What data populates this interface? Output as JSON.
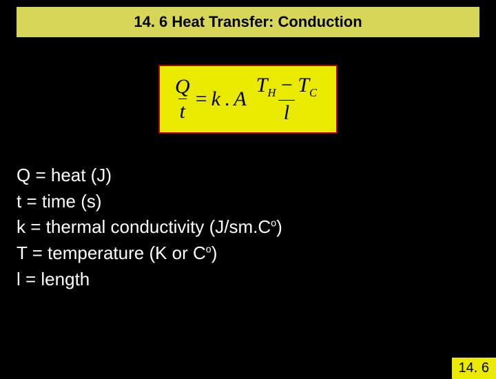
{
  "colors": {
    "background": "#000000",
    "title_bg": "#d6d658",
    "formula_bg": "#eaea00",
    "formula_border": "#b00000",
    "text_light": "#ffffff",
    "text_dark": "#000000"
  },
  "title": "14. 6 Heat Transfer: Conduction",
  "formula": {
    "lhs_num": "Q",
    "lhs_den": "t",
    "equals": "=",
    "k": "k",
    "dot": ".",
    "A": "A",
    "rhs_num_left": "T",
    "rhs_num_sub_left": "H",
    "rhs_num_minus": " − ",
    "rhs_num_right": "T",
    "rhs_num_sub_right": "C",
    "rhs_den": "l"
  },
  "definitions": {
    "q": "Q = heat (J)",
    "t": "t = time (s)",
    "k_pre": "k = thermal conductivity (J/sm.C",
    "k_sup": "o",
    "k_post": ")",
    "T_pre": "T = temperature (K or C",
    "T_sup": "o",
    "T_post": ")",
    "l": "l = length"
  },
  "page_number": "14. 6"
}
